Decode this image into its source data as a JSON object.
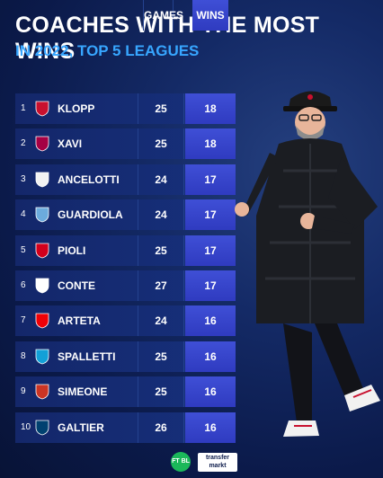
{
  "title": "COACHES WITH THE MOST WINS",
  "subtitle": "IN 2022, TOP 5 LEAGUES",
  "columns": {
    "games": "GAMES",
    "wins": "WINS"
  },
  "rows": [
    {
      "rank": "1",
      "name": "KLOPP",
      "games": "25",
      "wins": "18",
      "badge_color": "#c8102e",
      "badge_icon": "liverpool-crest"
    },
    {
      "rank": "2",
      "name": "XAVI",
      "games": "25",
      "wins": "18",
      "badge_color": "#a50044",
      "badge_icon": "barcelona-crest"
    },
    {
      "rank": "3",
      "name": "ANCELOTTI",
      "games": "24",
      "wins": "17",
      "badge_color": "#f2f2f2",
      "badge_icon": "real-madrid-crest"
    },
    {
      "rank": "4",
      "name": "GUARDIOLA",
      "games": "24",
      "wins": "17",
      "badge_color": "#6cabdd",
      "badge_icon": "man-city-crest"
    },
    {
      "rank": "5",
      "name": "PIOLI",
      "games": "25",
      "wins": "17",
      "badge_color": "#d2001c",
      "badge_icon": "ac-milan-crest"
    },
    {
      "rank": "6",
      "name": "CONTE",
      "games": "27",
      "wins": "17",
      "badge_color": "#ffffff",
      "badge_icon": "tottenham-crest"
    },
    {
      "rank": "7",
      "name": "ARTETA",
      "games": "24",
      "wins": "16",
      "badge_color": "#ef0107",
      "badge_icon": "arsenal-crest"
    },
    {
      "rank": "8",
      "name": "SPALLETTI",
      "games": "25",
      "wins": "16",
      "badge_color": "#12a0d7",
      "badge_icon": "napoli-crest"
    },
    {
      "rank": "9",
      "name": "SIMEONE",
      "games": "25",
      "wins": "16",
      "badge_color": "#cb3524",
      "badge_icon": "atletico-crest"
    },
    {
      "rank": "10",
      "name": "GALTIER",
      "games": "26",
      "wins": "16",
      "badge_color": "#004170",
      "badge_icon": "psg-crest"
    }
  ],
  "footer": {
    "fb_logo": "FT BL",
    "tm_logo_top": "transfer",
    "tm_logo_bottom": "markt"
  },
  "colors": {
    "title": "#ffffff",
    "subtitle": "#37a6ff",
    "wins_cell": "#3441c8",
    "row": "#15297a"
  }
}
